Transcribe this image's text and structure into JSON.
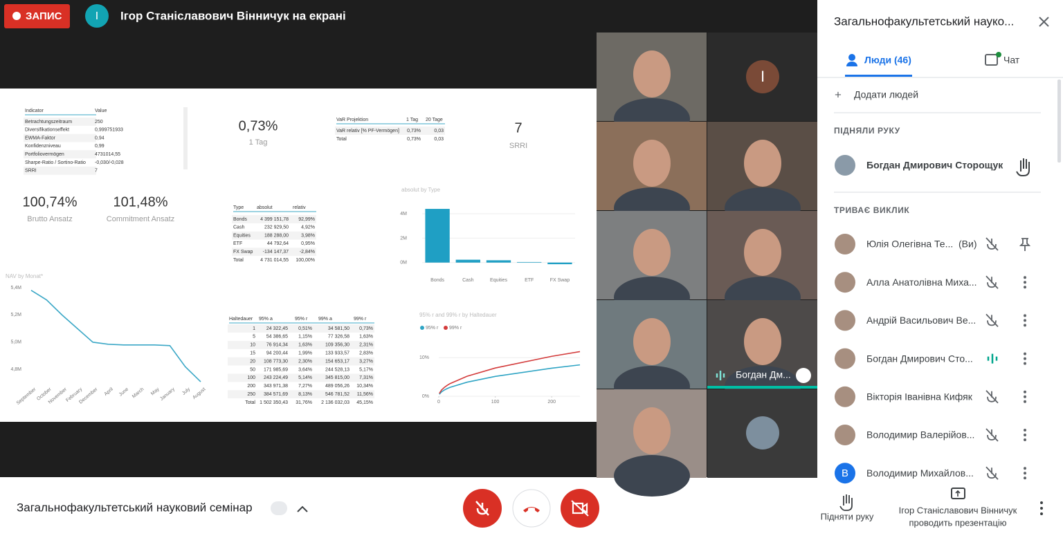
{
  "top_bar": {
    "recording": "ЗАПИС",
    "presenter_initial": "І",
    "presenter_text": "Ігор Станіславович Вінничук на екрані"
  },
  "shared_screen": {
    "indicator_table": {
      "header": [
        "Indicator",
        "Value"
      ],
      "rows": [
        [
          "Betrachtungszeitraum",
          "250"
        ],
        [
          "Diversifikationseffekt",
          "0,999751933"
        ],
        [
          "EWMA-Faktor",
          "0,94"
        ],
        [
          "Konfidenzniveau",
          "0,99"
        ],
        [
          "Portfoliovermögen",
          "4731014,55"
        ],
        [
          "Sharpe-Ratio / Sortino-Ratio",
          "-0,030/-0,028"
        ],
        [
          "SRRI",
          "7"
        ]
      ]
    },
    "kpis": [
      {
        "value": "0,73%",
        "label": "1 Tag"
      },
      {
        "value": "7",
        "label": "SRRI"
      },
      {
        "value": "100,74%",
        "label": "Brutto Ansatz"
      },
      {
        "value": "101,48%",
        "label": "Commitment Ansatz"
      }
    ],
    "var_table": {
      "header": [
        "VaR Projektion",
        "1 Tag",
        "20 Tage"
      ],
      "rows": [
        [
          "VaR relativ [% PF-Vermögen]",
          "0,73%",
          "0,03"
        ],
        [
          "Total",
          "0,73%",
          "0,03"
        ]
      ]
    },
    "type_table": {
      "header": [
        "Type",
        "absolut",
        "relativ"
      ],
      "rows": [
        [
          "Bonds",
          "4 399 151,78",
          "92,99%"
        ],
        [
          "Cash",
          "232 929,50",
          "4,92%"
        ],
        [
          "Equities",
          "188 288,00",
          "3,98%"
        ],
        [
          "ETF",
          "44 792,64",
          "0,95%"
        ],
        [
          "FX Swap",
          "-134 147,37",
          "-2,84%"
        ],
        [
          "Total",
          "4 731 014,55",
          "100,00%"
        ]
      ]
    },
    "haltedauer_table": {
      "header": [
        "Haltedauer",
        "95% a",
        "95% r",
        "99% a",
        "99% r"
      ],
      "rows": [
        [
          "1",
          "24 322,45",
          "0,51%",
          "34 581,50",
          "0,73%"
        ],
        [
          "5",
          "54 386,65",
          "1,15%",
          "77 326,58",
          "1,63%"
        ],
        [
          "10",
          "76 914,34",
          "1,63%",
          "109 356,30",
          "2,31%"
        ],
        [
          "15",
          "94 200,44",
          "1,99%",
          "133 933,57",
          "2,83%"
        ],
        [
          "20",
          "108 773,30",
          "2,30%",
          "154 653,17",
          "3,27%"
        ],
        [
          "50",
          "171 985,69",
          "3,64%",
          "244 528,13",
          "5,17%"
        ],
        [
          "100",
          "243 224,49",
          "5,14%",
          "345 815,00",
          "7,31%"
        ],
        [
          "200",
          "343 971,38",
          "7,27%",
          "489 056,26",
          "10,34%"
        ],
        [
          "250",
          "384 571,69",
          "8,13%",
          "546 781,52",
          "11,56%"
        ],
        [
          "Total",
          "1 502 350,43",
          "31,76%",
          "2 136 032,03",
          "45,15%"
        ]
      ]
    },
    "type_chart": {
      "type": "bar",
      "title": "absolut by Type",
      "categories": [
        "Bonds",
        "Cash",
        "Equities",
        "ETF",
        "FX Swap"
      ],
      "values": [
        4399151.78,
        232929.5,
        188288,
        44792.64,
        -134147.37
      ],
      "color": "#1f9fc4",
      "ylim": [
        -300000,
        4800000
      ],
      "yticks": [
        {
          "value": 0,
          "label": "0M"
        },
        {
          "value": 2000000,
          "label": "2M"
        },
        {
          "value": 4000000,
          "label": "4M"
        }
      ]
    },
    "nav_chart": {
      "type": "line",
      "title": "NAV by Monat*",
      "categories": [
        "September",
        "October",
        "November",
        "February",
        "December",
        "April",
        "June",
        "March",
        "May",
        "January",
        "July",
        "August"
      ],
      "values": [
        5380000,
        5310000,
        5200000,
        5100000,
        5000000,
        4985000,
        4980000,
        4980000,
        4980000,
        4975000,
        4820000,
        4710000
      ],
      "color": "#3aa7c6",
      "ylim": [
        4690000,
        5430000
      ],
      "yticks": [
        {
          "value": 4800000,
          "label": "4,8M"
        },
        {
          "value": 5000000,
          "label": "5,0M"
        },
        {
          "value": 5200000,
          "label": "5,2M"
        },
        {
          "value": 5400000,
          "label": "5,4M"
        }
      ]
    },
    "haltedauer_chart": {
      "type": "line",
      "title": "95% r and 99% r by Haltedauer",
      "x": [
        1,
        5,
        10,
        15,
        20,
        50,
        100,
        200,
        250
      ],
      "series": [
        {
          "name": "95% r",
          "color": "#2ea4c4",
          "values": [
            0.51,
            1.15,
            1.63,
            1.99,
            2.3,
            3.64,
            5.14,
            7.27,
            8.13
          ]
        },
        {
          "name": "99% r",
          "color": "#d33b3b",
          "values": [
            0.73,
            1.63,
            2.31,
            2.83,
            3.27,
            5.17,
            7.31,
            10.34,
            11.56
          ]
        }
      ],
      "xlim": [
        0,
        250
      ],
      "xticks": [
        0,
        100,
        200
      ],
      "ylim": [
        0,
        12
      ],
      "yticks": [
        {
          "value": 0,
          "label": "0%"
        },
        {
          "value": 10,
          "label": "10%"
        }
      ]
    }
  },
  "video_tiles": {
    "avatar_initial": "І",
    "speaker_label": "Богдан Дм..."
  },
  "sidebar": {
    "title": "Загальнофакультетський науко...",
    "tabs": [
      "Люди (46)",
      "Чат"
    ],
    "add_people": "Додати людей",
    "raised_section": "ПІДНЯЛИ РУКУ",
    "raised": [
      "Богдан Дмирович Сторощук"
    ],
    "in_call_section": "ТРИВАЄ ВИКЛИК",
    "participants": [
      {
        "name": "Юлія Олегівна Те...",
        "suffix": "(Ви)"
      },
      {
        "name": "Алла Анатолівна Миха..."
      },
      {
        "name": "Андрій Васильович Ве..."
      },
      {
        "name": "Богдан Дмирович Сто..."
      },
      {
        "name": "Вікторія Іванівна Кифяк"
      },
      {
        "name": "Володимир Валерійов..."
      },
      {
        "name": "Володимир Михайлов...",
        "initial": "В"
      }
    ]
  },
  "bottom_bar": {
    "meeting_title": "Загальнофакультетський науковий семінар",
    "raise_hand": "Підняти руку",
    "presenting": [
      "Ігор Станіславович Вінничук",
      "проводить презентацію"
    ]
  }
}
